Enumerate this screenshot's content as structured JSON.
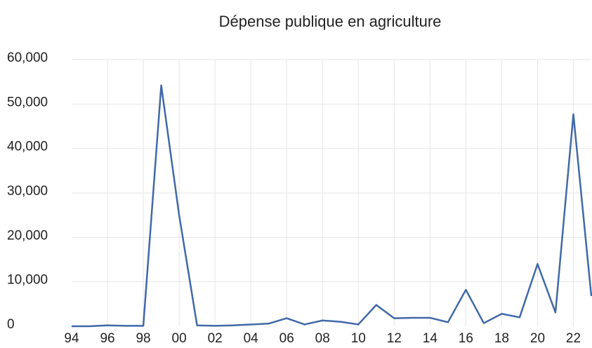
{
  "chart_data": {
    "type": "line",
    "title": "Dépense publique en agriculture",
    "categories": [
      "94",
      null,
      "96",
      null,
      "98",
      null,
      "00",
      null,
      "02",
      null,
      "04",
      null,
      "06",
      null,
      "08",
      null,
      "10",
      null,
      "12",
      null,
      "14",
      null,
      "16",
      null,
      "18",
      null,
      "20",
      null,
      "22",
      null
    ],
    "series": [
      {
        "name": "Dépense publique",
        "color": "#4169a8",
        "values": [
          0,
          0,
          200,
          100,
          100,
          54200,
          25000,
          200,
          100,
          200,
          400,
          600,
          1800,
          400,
          1300,
          1000,
          400,
          4800,
          1800,
          1900,
          1900,
          900,
          8200,
          700,
          2800,
          2000,
          14000,
          3100,
          47700,
          6800
        ]
      }
    ],
    "ylim": [
      0,
      60000
    ],
    "yticks": [
      0,
      {
        "value": 10000,
        "label": "10,000"
      },
      {
        "value": 20000,
        "label": "20,000"
      },
      {
        "value": 30000,
        "label": "30,000"
      },
      {
        "value": 40000,
        "label": "40,000"
      },
      {
        "value": 50000,
        "label": "50,000"
      },
      {
        "value": 60000,
        "label": "60,000"
      }
    ],
    "grid": true
  }
}
